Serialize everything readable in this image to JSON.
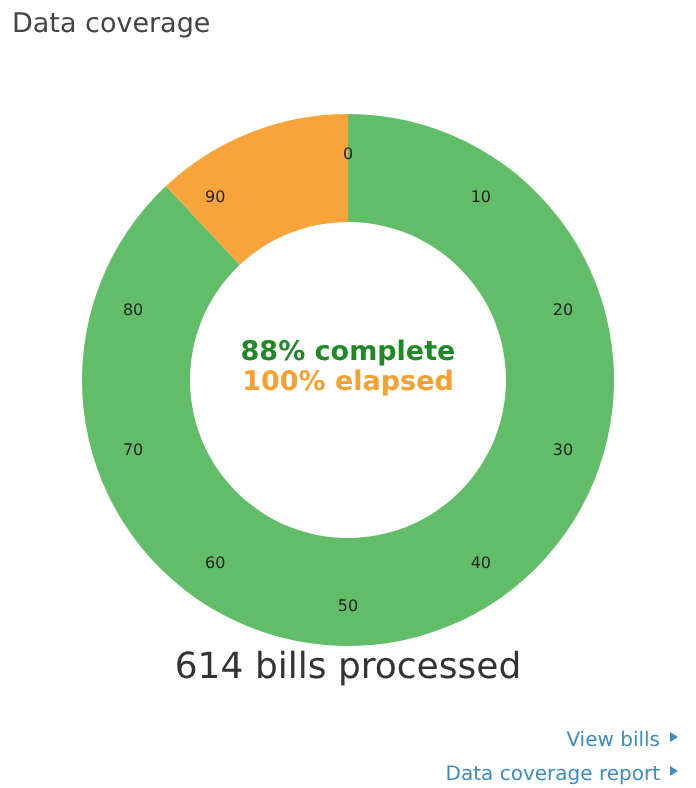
{
  "chart_data": {
    "type": "donut",
    "title": "Data coverage",
    "categories": [
      null,
      null
    ],
    "values": [
      88,
      12
    ],
    "colors": [
      "#62bd69",
      "#f9a43b"
    ],
    "annotations": [
      "88% complete",
      "100% elapsed",
      "614 bills processed",
      "View bills",
      "Data coverage report",
      "0",
      "10",
      "20",
      "30",
      "40",
      "50",
      "60",
      "70",
      "80",
      "90"
    ]
  }
}
